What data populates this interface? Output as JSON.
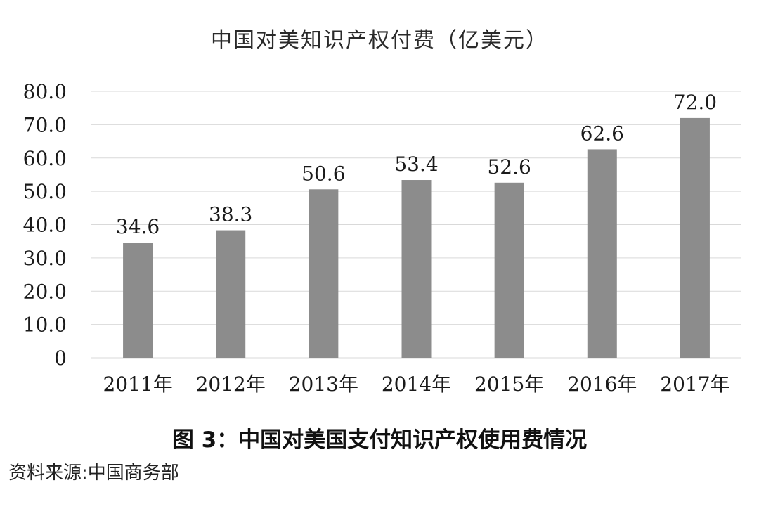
{
  "chart_data": {
    "type": "bar",
    "title": "中国对美知识产权付费（亿美元）",
    "categories": [
      "2011年",
      "2012年",
      "2013年",
      "2014年",
      "2015年",
      "2016年",
      "2017年"
    ],
    "values": [
      34.6,
      38.3,
      50.6,
      53.4,
      52.6,
      62.6,
      72.0
    ],
    "value_labels": [
      "34.6",
      "38.3",
      "50.6",
      "53.4",
      "52.6",
      "62.6",
      "72.0"
    ],
    "yticks": [
      0,
      10,
      20,
      30,
      40,
      50,
      60,
      70,
      80
    ],
    "ytick_labels": [
      "0",
      "10.0",
      "20.0",
      "30.0",
      "40.0",
      "50.0",
      "60.0",
      "70.0",
      "80.0"
    ],
    "ylim": [
      0,
      80
    ],
    "xlabel": "",
    "ylabel": "",
    "grid": true,
    "legend": "none",
    "bar_color": "#8c8c8c"
  },
  "caption": "图 3：中国对美国支付知识产权使用费情况",
  "source": "资料来源:中国商务部"
}
